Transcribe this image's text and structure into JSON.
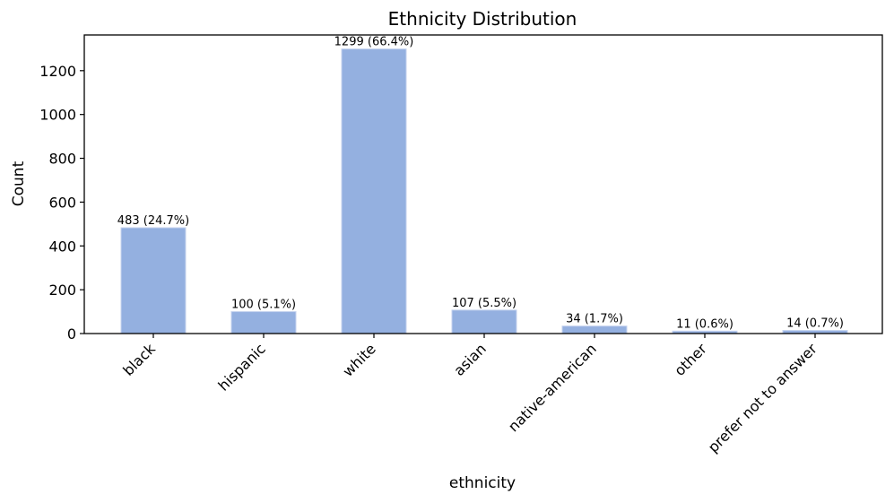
{
  "chart_data": {
    "type": "bar",
    "title": "Ethnicity Distribution",
    "xlabel": "ethnicity",
    "ylabel": "Count",
    "categories": [
      "black",
      "hispanic",
      "white",
      "asian",
      "native-american",
      "other",
      "prefer not to answer"
    ],
    "values": [
      483,
      100,
      1299,
      107,
      34,
      11,
      14
    ],
    "bar_labels": [
      "483 (24.7%)",
      "100 (5.1%)",
      "1299 (66.4%)",
      "107 (5.5%)",
      "34 (1.7%)",
      "11 (0.6%)",
      "14 (0.7%)"
    ],
    "ylim": [
      0,
      1363
    ],
    "yticks": [
      0,
      200,
      400,
      600,
      800,
      1000,
      1200
    ],
    "grid": false,
    "bar_color": "#94b0e0",
    "bar_edge_color": "#c4d2ee"
  }
}
